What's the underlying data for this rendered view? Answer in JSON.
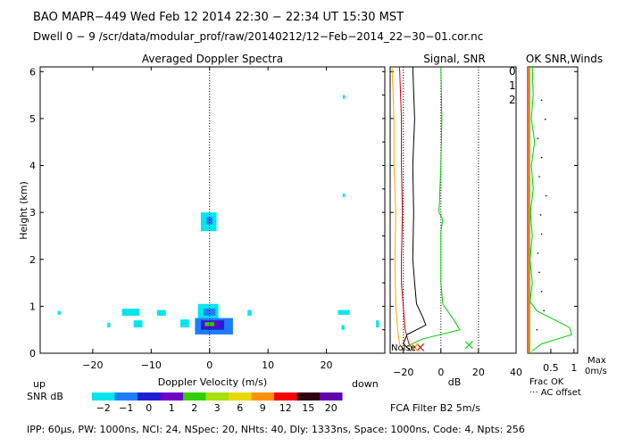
{
  "header": {
    "line1": "BAO  MAPR−449  Wed Feb 12 2014 22:30 − 22:34 UT 15:30 MST",
    "line2": "Dwell  0 −  9   /scr/data/modular_prof/raw/20140212/12−Feb−2014_22−30−01.cor.nc"
  },
  "footer": {
    "text": "IPP:  60µs,  PW: 1000ns,  NCI: 24,  NSpec: 20,  NHts: 40,  Dly: 1333ns,  Space: 1000ns,  Code: 4,  Npts: 256",
    "fca": "FCA Filter B2   5m/s"
  },
  "colorbar": {
    "label": "SNR dB",
    "ticks": [
      "−2",
      "−1",
      "0",
      "1",
      "2",
      "3",
      "6",
      "9",
      "12",
      "15",
      "20"
    ],
    "colors": [
      "#00e5ee",
      "#1e7dff",
      "#2020d0",
      "#7000c8",
      "#30d000",
      "#a8e000",
      "#e8d800",
      "#ff9000",
      "#ff0000",
      "#300010",
      "#6000b0"
    ]
  },
  "chart_data": [
    {
      "type": "heatmap",
      "title": "Averaged Doppler Spectra",
      "xlabel": "Doppler Velocity (m/s)",
      "ylabel": "Height (km)",
      "xlim": [
        -29,
        30
      ],
      "ylim": [
        0,
        6.1
      ],
      "xticks": [
        -20,
        -10,
        0,
        10,
        20
      ],
      "yticks": [
        0,
        1,
        2,
        3,
        4,
        5,
        6
      ],
      "direction_left": "up",
      "direction_right": "down",
      "regions": [
        {
          "v": [
            -2.5,
            4
          ],
          "h": [
            0.4,
            0.75
          ],
          "level": 1
        },
        {
          "v": [
            -1.5,
            2.5
          ],
          "h": [
            0.5,
            0.7
          ],
          "level": 2
        },
        {
          "v": [
            -1,
            1.5
          ],
          "h": [
            0.55,
            0.68
          ],
          "level": 3
        },
        {
          "v": [
            -0.8,
            0.8
          ],
          "h": [
            0.58,
            0.66
          ],
          "level": 4
        },
        {
          "v": [
            -2,
            1.5
          ],
          "h": [
            0.75,
            1.05
          ],
          "level": 0
        },
        {
          "v": [
            -1,
            1
          ],
          "h": [
            0.8,
            0.95
          ],
          "level": 1
        },
        {
          "v": [
            -1.5,
            1.2
          ],
          "h": [
            2.6,
            3.0
          ],
          "level": 0
        },
        {
          "v": [
            -0.5,
            0.5
          ],
          "h": [
            2.75,
            2.9
          ],
          "level": 1
        },
        {
          "v": [
            -15,
            -12
          ],
          "h": [
            0.8,
            0.95
          ],
          "level": 0
        },
        {
          "v": [
            -9,
            -7.5
          ],
          "h": [
            0.8,
            0.92
          ],
          "level": 0
        },
        {
          "v": [
            -13,
            -11.5
          ],
          "h": [
            0.55,
            0.7
          ],
          "level": 0
        },
        {
          "v": [
            -5,
            -3.5
          ],
          "h": [
            0.55,
            0.72
          ],
          "level": 0
        },
        {
          "v": [
            -26,
            -25.5
          ],
          "h": [
            0.82,
            0.9
          ],
          "level": 0
        },
        {
          "v": [
            -17.5,
            -17
          ],
          "h": [
            0.55,
            0.65
          ],
          "level": 0
        },
        {
          "v": [
            6.5,
            7.2
          ],
          "h": [
            0.8,
            0.92
          ],
          "level": 0
        },
        {
          "v": [
            22,
            24
          ],
          "h": [
            0.82,
            0.92
          ],
          "level": 0
        },
        {
          "v": [
            22.6,
            23.1
          ],
          "h": [
            0.5,
            0.6
          ],
          "level": 0
        },
        {
          "v": [
            28.5,
            29
          ],
          "h": [
            0.55,
            0.7
          ],
          "level": 0
        },
        {
          "v": [
            22.8,
            23.2
          ],
          "h": [
            5.42,
            5.5
          ],
          "level": 0
        },
        {
          "v": [
            22.8,
            23.2
          ],
          "h": [
            3.33,
            3.4
          ],
          "level": 0
        }
      ]
    },
    {
      "type": "line",
      "title": "Signal, SNR",
      "xlabel": "dB",
      "xlim": [
        -27,
        40
      ],
      "xticks": [
        -20,
        0,
        20,
        40
      ],
      "ylim": [
        0,
        6.1
      ],
      "noise_label": "Noise",
      "legend": [
        "0",
        "1",
        "2"
      ],
      "legend_colors": [
        "#ff0000",
        "#ffa500",
        "#00cc00"
      ],
      "series": [
        {
          "name": "0",
          "color": "#cc0000",
          "points": [
            [
              -22,
              6.1
            ],
            [
              -21,
              5
            ],
            [
              -21,
              4
            ],
            [
              -20.5,
              3
            ],
            [
              -21,
              2
            ],
            [
              -21,
              1.5
            ],
            [
              -20,
              1
            ],
            [
              -19,
              0.5
            ],
            [
              -17,
              0.2
            ],
            [
              -14,
              0.05
            ]
          ]
        },
        {
          "name": "1",
          "color": "#ffa500",
          "points": [
            [
              -26,
              6.1
            ],
            [
              -25,
              5
            ],
            [
              -25,
              4
            ],
            [
              -24,
              3
            ],
            [
              -24.5,
              2
            ],
            [
              -24,
              1
            ],
            [
              -23,
              0.5
            ],
            [
              -22,
              0.2
            ],
            [
              -20,
              0.05
            ]
          ]
        },
        {
          "name": "2",
          "color": "#00cc00",
          "points": [
            [
              0,
              6.1
            ],
            [
              0.5,
              5
            ],
            [
              0,
              4
            ],
            [
              -1,
              3
            ],
            [
              1,
              2.85
            ],
            [
              0,
              2.6
            ],
            [
              0,
              2
            ],
            [
              0,
              1.5
            ],
            [
              1,
              1.05
            ],
            [
              7,
              0.7
            ],
            [
              10,
              0.5
            ],
            [
              -10,
              0.3
            ],
            [
              -18,
              0.15
            ]
          ]
        },
        {
          "name": "signal",
          "color": "#000000",
          "points": [
            [
              -15,
              6.1
            ],
            [
              -14,
              5
            ],
            [
              -15,
              4
            ],
            [
              -14.5,
              3
            ],
            [
              -15,
              2
            ],
            [
              -14,
              1.5
            ],
            [
              -13,
              1.05
            ],
            [
              -10,
              0.8
            ],
            [
              -8,
              0.6
            ],
            [
              -18,
              0.4
            ],
            [
              -20,
              0.2
            ],
            [
              -16,
              0.05
            ]
          ]
        }
      ],
      "dotted_x": [
        -20,
        0,
        20
      ],
      "markers": [
        {
          "x": -11,
          "y": 0.05,
          "color": "#cc0000"
        },
        {
          "x": -14,
          "y": 0.05,
          "color": "#ffa500"
        },
        {
          "x": 15,
          "y": 0.1,
          "color": "#00cc00"
        }
      ]
    },
    {
      "type": "line",
      "title": "OK  SNR,Winds",
      "xlabel_frac": "Frac OK",
      "xlabel_ac": "··· AC offset",
      "xlabel_max": "Max",
      "xlabel_unit": "0m/s",
      "xlim": [
        0,
        1.08
      ],
      "xticks": [
        "0.5",
        "1"
      ],
      "ylim": [
        0,
        6.1
      ],
      "series": [
        {
          "name": "snr",
          "color": "#00cc00",
          "points": [
            [
              0.1,
              6.1
            ],
            [
              0.12,
              5.5
            ],
            [
              0.08,
              5
            ],
            [
              0.15,
              4.5
            ],
            [
              0.08,
              4
            ],
            [
              0.12,
              3.5
            ],
            [
              0.06,
              3
            ],
            [
              0.1,
              2.5
            ],
            [
              0.05,
              2
            ],
            [
              0.1,
              1.5
            ],
            [
              0.05,
              1.1
            ],
            [
              0.2,
              0.9
            ],
            [
              0.9,
              0.55
            ],
            [
              0.95,
              0.4
            ],
            [
              0.3,
              0.2
            ],
            [
              0.1,
              0.05
            ]
          ]
        }
      ],
      "ok_lines": [
        {
          "x": 0.005,
          "color": "#ff0000"
        },
        {
          "x": 0.025,
          "color": "#ffa500"
        },
        {
          "x": 0.045,
          "color": "#00cc00"
        }
      ],
      "dots_x": [
        0.2,
        0.35,
        0.3,
        0.25,
        0.22,
        0.3,
        0.28,
        0.4,
        0.25,
        0.3,
        0.22,
        0.38,
        0.3
      ]
    }
  ]
}
